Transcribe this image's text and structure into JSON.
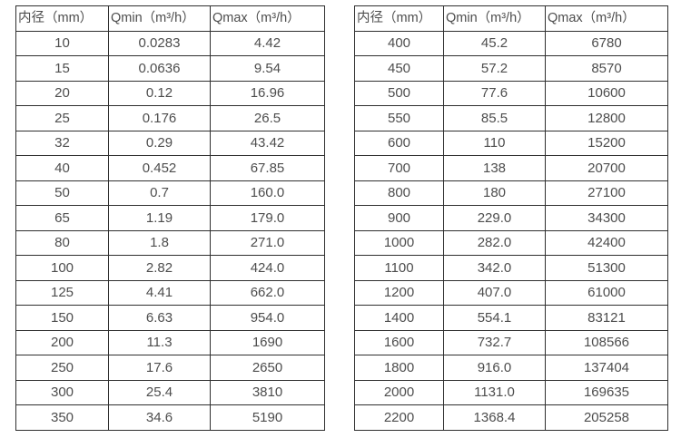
{
  "page": {
    "background": "#ffffff",
    "text_color": "#4d4d4d",
    "border_color": "#2f2f2f"
  },
  "tables": [
    {
      "name": "small-diameter-flow-table",
      "headers": [
        "内径（mm）",
        "Qmin（m³/h）",
        "Qmax（m³/h）"
      ],
      "rows": [
        [
          "10",
          "0.0283",
          "4.42"
        ],
        [
          "15",
          "0.0636",
          "9.54"
        ],
        [
          "20",
          "0.12",
          "16.96"
        ],
        [
          "25",
          "0.176",
          "26.5"
        ],
        [
          "32",
          "0.29",
          "43.42"
        ],
        [
          "40",
          "0.452",
          "67.85"
        ],
        [
          "50",
          "0.7",
          "160.0"
        ],
        [
          "65",
          "1.19",
          "179.0"
        ],
        [
          "80",
          "1.8",
          "271.0"
        ],
        [
          "100",
          "2.82",
          "424.0"
        ],
        [
          "125",
          "4.41",
          "662.0"
        ],
        [
          "150",
          "6.63",
          "954.0"
        ],
        [
          "200",
          "11.3",
          "1690"
        ],
        [
          "250",
          "17.6",
          "2650"
        ],
        [
          "300",
          "25.4",
          "3810"
        ],
        [
          "350",
          "34.6",
          "5190"
        ]
      ]
    },
    {
      "name": "large-diameter-flow-table",
      "headers": [
        "内径（mm）",
        "Qmin（m³/h）",
        "Qmax（m³/h）"
      ],
      "rows": [
        [
          "400",
          "45.2",
          "6780"
        ],
        [
          "450",
          "57.2",
          "8570"
        ],
        [
          "500",
          "77.6",
          "10600"
        ],
        [
          "550",
          "85.5",
          "12800"
        ],
        [
          "600",
          "110",
          "15200"
        ],
        [
          "700",
          "138",
          "20700"
        ],
        [
          "800",
          "180",
          "27100"
        ],
        [
          "900",
          "229.0",
          "34300"
        ],
        [
          "1000",
          "282.0",
          "42400"
        ],
        [
          "1100",
          "342.0",
          "51300"
        ],
        [
          "1200",
          "407.0",
          "61000"
        ],
        [
          "1400",
          "554.1",
          "83121"
        ],
        [
          "1600",
          "732.7",
          "108566"
        ],
        [
          "1800",
          "916.0",
          "137404"
        ],
        [
          "2000",
          "1131.0",
          "169635"
        ],
        [
          "2200",
          "1368.4",
          "205258"
        ]
      ]
    }
  ]
}
